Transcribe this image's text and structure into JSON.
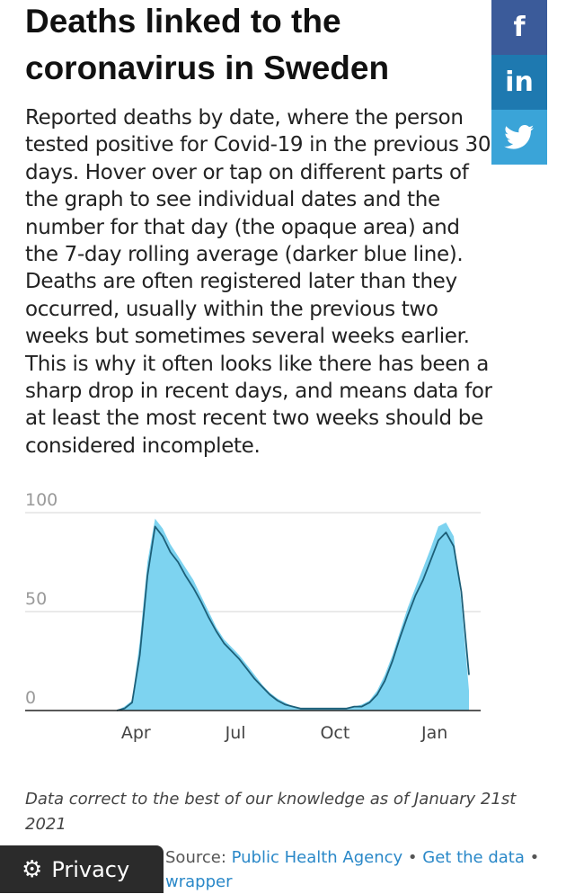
{
  "header": {
    "title": "Deaths linked to the coronavirus in Sweden"
  },
  "description": "Reported deaths by date, where the person tested positive for Covid-19 in the previous 30 days. Hover over or tap on different parts of the graph to see individual dates and the number for that day (the opaque area) and the 7-day rolling average (darker blue line). Deaths are often registered later than they occurred, usually within the previous two weeks but sometimes several weeks earlier. This is why it often looks like there has been a sharp drop in recent days, and means data for at least the most recent two weeks should be considered incomplete.",
  "share": {
    "facebook": {
      "glyph": "f",
      "icon": "facebook-icon",
      "color": "#3b5b9a"
    },
    "linkedin": {
      "glyph": "in",
      "icon": "linkedin-icon",
      "color": "#1e79b0"
    },
    "twitter": {
      "glyph": "🐦",
      "icon": "twitter-icon",
      "color": "#3aa4d8"
    }
  },
  "chart_data": {
    "type": "area",
    "title": "",
    "xlabel": "",
    "ylabel": "",
    "ylim": [
      0,
      100
    ],
    "yticks": [
      "100",
      "50",
      "0"
    ],
    "ytick_values": [
      100,
      50,
      0
    ],
    "xticks": [
      "Apr",
      "Jul",
      "Oct",
      "Jan"
    ],
    "xtick_weeks": [
      2.5,
      15.5,
      28.5,
      41.5
    ],
    "grid": true,
    "colors": {
      "daily": "#7dd3f0",
      "average": "#1d5f78"
    },
    "series": [
      {
        "name": "",
        "values": [
          0,
          2,
          5,
          35,
          75,
          97,
          92,
          84,
          78,
          72,
          66,
          58,
          50,
          42,
          36,
          32,
          28,
          23,
          18,
          13,
          9,
          6,
          4,
          2,
          1,
          1,
          1,
          1,
          1,
          1,
          1,
          2,
          3,
          5,
          10,
          18,
          28,
          40,
          52,
          62,
          72,
          82,
          93,
          95,
          88,
          55,
          10
        ]
      },
      {
        "name": "",
        "values": [
          0,
          1,
          4,
          28,
          68,
          93,
          88,
          80,
          75,
          68,
          62,
          55,
          47,
          40,
          34,
          30,
          26,
          21,
          16,
          12,
          8,
          5,
          3,
          2,
          1,
          1,
          1,
          1,
          1,
          1,
          1,
          2,
          2,
          4,
          8,
          15,
          25,
          37,
          48,
          58,
          66,
          76,
          86,
          90,
          83,
          60,
          18
        ]
      }
    ]
  },
  "footer": {
    "note": "Data correct to the best of our knowledge as of January 21st 2021",
    "source_label": "Source: ",
    "source_link": "Public Health Agency",
    "separator": " • ",
    "get_data_link": "Get the data",
    "wrapper_link": "wrapper"
  },
  "privacy": {
    "label": "Privacy",
    "icon": "gear-icon"
  }
}
